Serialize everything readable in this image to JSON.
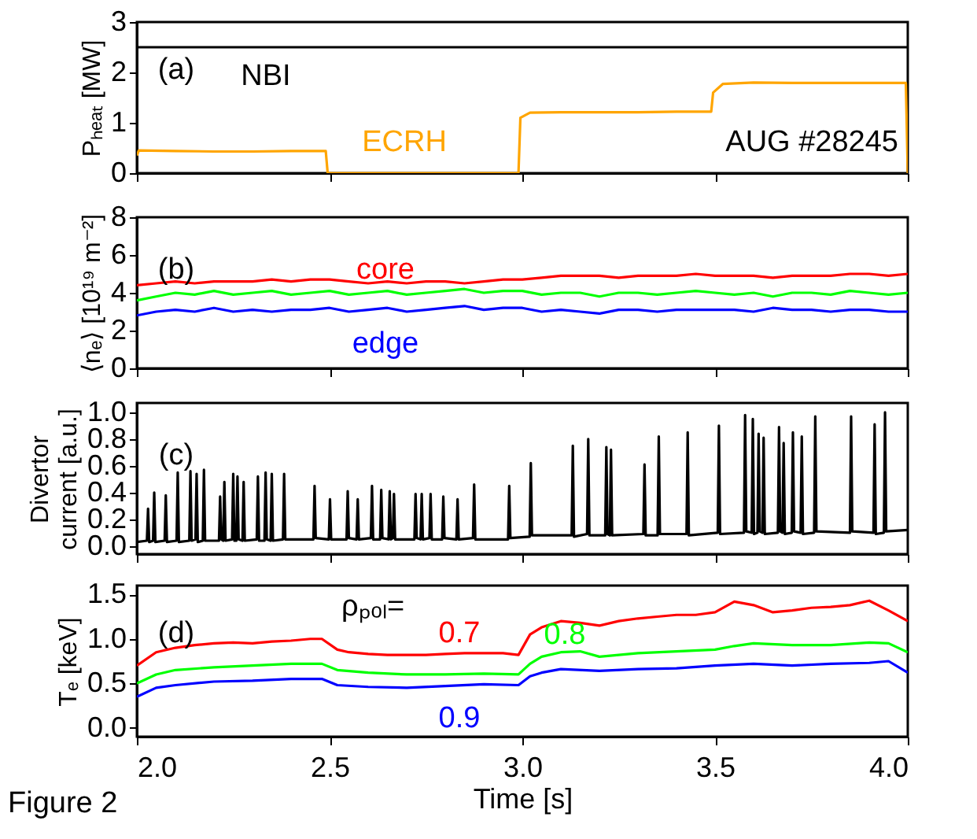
{
  "chart_data": [
    {
      "type": "line",
      "ylabel": "Pₕₑₐₜ [MW]",
      "xlim": [
        2,
        4
      ],
      "xticks": [
        2,
        2.5,
        3,
        3.5,
        4
      ],
      "ylim": [
        0,
        3
      ],
      "yticks": [
        0,
        1,
        2,
        3
      ],
      "tick_labels": "y",
      "annotations": [
        "(a)",
        "AUG #28245"
      ],
      "series": [
        {
          "name": "NBI",
          "color": "#000000",
          "x": [
            2.0,
            4.0
          ],
          "values": [
            2.5,
            2.5
          ]
        },
        {
          "name": "ECRH",
          "color": "#ffa500",
          "x": [
            2.0,
            2.005,
            2.1,
            2.2,
            2.3,
            2.4,
            2.49,
            2.495,
            2.99,
            2.995,
            3.02,
            3.1,
            3.2,
            3.3,
            3.4,
            3.49,
            3.495,
            3.52,
            3.6,
            3.7,
            3.8,
            3.9,
            3.995,
            4.0
          ],
          "values": [
            0.35,
            0.45,
            0.44,
            0.43,
            0.43,
            0.44,
            0.44,
            0,
            0,
            1.1,
            1.2,
            1.21,
            1.21,
            1.21,
            1.22,
            1.22,
            1.6,
            1.77,
            1.8,
            1.79,
            1.79,
            1.79,
            1.79,
            0
          ]
        }
      ]
    },
    {
      "type": "line",
      "ylabel": "⟨nₑ⟩ [10¹⁹ m⁻²]",
      "xlim": [
        2,
        4
      ],
      "xticks": [
        2,
        2.5,
        3,
        3.5,
        4
      ],
      "ylim": [
        0,
        8
      ],
      "yticks": [
        0,
        2,
        4,
        6,
        8
      ],
      "tick_labels": "y",
      "annotations": [
        "(b)"
      ],
      "x": [
        2.0,
        2.05,
        2.1,
        2.15,
        2.2,
        2.25,
        2.3,
        2.35,
        2.4,
        2.45,
        2.5,
        2.55,
        2.6,
        2.65,
        2.7,
        2.75,
        2.8,
        2.85,
        2.9,
        2.95,
        3.0,
        3.05,
        3.1,
        3.15,
        3.2,
        3.25,
        3.3,
        3.35,
        3.4,
        3.45,
        3.5,
        3.55,
        3.6,
        3.65,
        3.7,
        3.75,
        3.8,
        3.85,
        3.9,
        3.95,
        4.0
      ],
      "series": [
        {
          "name": "core",
          "color": "#ff0000",
          "values": [
            4.4,
            4.5,
            4.6,
            4.5,
            4.6,
            4.6,
            4.6,
            4.7,
            4.6,
            4.7,
            4.7,
            4.6,
            4.5,
            4.6,
            4.5,
            4.6,
            4.6,
            4.5,
            4.6,
            4.7,
            4.7,
            4.8,
            4.9,
            4.9,
            4.9,
            4.8,
            4.9,
            4.9,
            4.9,
            5.0,
            4.9,
            4.9,
            4.9,
            4.8,
            4.9,
            4.9,
            4.9,
            5.0,
            5.0,
            4.9,
            5.0
          ]
        },
        {
          "color": "#00ff00",
          "values": [
            3.6,
            3.8,
            4.0,
            3.9,
            4.1,
            3.9,
            4.0,
            4.1,
            3.9,
            4.0,
            4.1,
            3.9,
            4.0,
            4.1,
            3.9,
            4.0,
            4.1,
            4.2,
            4.0,
            4.1,
            4.1,
            3.9,
            4.0,
            4.0,
            3.8,
            4.0,
            4.0,
            3.9,
            4.0,
            4.1,
            4.0,
            3.9,
            4.0,
            3.8,
            4.0,
            4.0,
            3.9,
            4.1,
            4.0,
            3.9,
            4.0
          ]
        },
        {
          "name": "edge",
          "color": "#0000ff",
          "values": [
            2.8,
            3.0,
            3.1,
            3.0,
            3.2,
            3.0,
            3.1,
            3.0,
            3.1,
            3.1,
            3.2,
            3.0,
            3.1,
            3.2,
            3.0,
            3.1,
            3.2,
            3.3,
            3.1,
            3.2,
            3.2,
            3.0,
            3.1,
            3.0,
            2.9,
            3.1,
            3.1,
            3.0,
            3.1,
            3.1,
            3.1,
            3.1,
            3.0,
            3.2,
            3.1,
            3.1,
            3.0,
            3.1,
            3.1,
            3.0,
            3.0
          ]
        }
      ]
    },
    {
      "type": "line",
      "ylabel": "Divertor\ncurrent [a.u.]",
      "xlim": [
        2,
        4
      ],
      "xticks": [
        2,
        2.5,
        3,
        3.5,
        4
      ],
      "ylim": [
        -0.06,
        1.07
      ],
      "yticks": [
        {
          "value": 0,
          "label": "0.0"
        },
        {
          "value": 0.2,
          "label": "0.2"
        },
        {
          "value": 0.4,
          "label": "0.4"
        },
        {
          "value": 0.6,
          "label": "0.6"
        },
        {
          "value": 0.8,
          "label": "0.8"
        },
        {
          "value": 1,
          "label": "1.0"
        }
      ],
      "tick_labels": "y",
      "annotations": [
        "(c)"
      ],
      "series": [
        {
          "color": "#000000",
          "x": [
            2.0,
            2.026,
            2.029,
            2.032,
            2.042,
            2.045,
            2.048,
            2.072,
            2.075,
            2.078,
            2.103,
            2.106,
            2.109,
            2.136,
            2.139,
            2.142,
            2.152,
            2.155,
            2.158,
            2.171,
            2.174,
            2.177,
            2.213,
            2.216,
            2.219,
            2.224,
            2.227,
            2.23,
            2.247,
            2.25,
            2.253,
            2.258,
            2.261,
            2.264,
            2.274,
            2.277,
            2.28,
            2.311,
            2.314,
            2.317,
            2.331,
            2.334,
            2.337,
            2.347,
            2.35,
            2.353,
            2.379,
            2.382,
            2.385,
            2.458,
            2.461,
            2.464,
            2.498,
            2.501,
            2.504,
            2.544,
            2.547,
            2.55,
            2.57,
            2.573,
            2.576,
            2.607,
            2.61,
            2.613,
            2.631,
            2.634,
            2.637,
            2.653,
            2.656,
            2.659,
            2.664,
            2.667,
            2.67,
            2.72,
            2.723,
            2.726,
            2.736,
            2.739,
            2.742,
            2.759,
            2.762,
            2.765,
            2.792,
            2.795,
            2.798,
            2.829,
            2.832,
            2.835,
            2.872,
            2.875,
            2.878,
            2.963,
            2.966,
            2.969,
            3.019,
            3.022,
            3.025,
            3.128,
            3.131,
            3.134,
            3.168,
            3.171,
            3.174,
            3.215,
            3.218,
            3.221,
            3.227,
            3.23,
            3.233,
            3.314,
            3.317,
            3.32,
            3.351,
            3.354,
            3.357,
            3.426,
            3.429,
            3.432,
            3.507,
            3.51,
            3.513,
            3.575,
            3.578,
            3.581,
            3.595,
            3.598,
            3.601,
            3.61,
            3.613,
            3.616,
            3.623,
            3.626,
            3.629,
            3.663,
            3.666,
            3.669,
            3.675,
            3.678,
            3.681,
            3.699,
            3.702,
            3.705,
            3.722,
            3.725,
            3.728,
            3.757,
            3.76,
            3.763,
            3.85,
            3.853,
            3.856,
            3.911,
            3.914,
            3.917,
            3.938,
            3.941,
            3.944,
            4.0
          ],
          "values": [
            0.03,
            0.04,
            0.28,
            0.03,
            0.04,
            0.4,
            0.03,
            0.04,
            0.38,
            0.03,
            0.04,
            0.55,
            0.03,
            0.04,
            0.56,
            0.04,
            0.05,
            0.54,
            0.03,
            0.04,
            0.57,
            0.04,
            0.04,
            0.37,
            0.05,
            0.04,
            0.48,
            0.04,
            0.05,
            0.54,
            0.04,
            0.04,
            0.52,
            0.05,
            0.04,
            0.48,
            0.04,
            0.05,
            0.52,
            0.04,
            0.04,
            0.55,
            0.05,
            0.04,
            0.54,
            0.04,
            0.05,
            0.54,
            0.05,
            0.05,
            0.45,
            0.06,
            0.05,
            0.35,
            0.05,
            0.05,
            0.41,
            0.06,
            0.05,
            0.35,
            0.05,
            0.06,
            0.45,
            0.05,
            0.05,
            0.42,
            0.06,
            0.05,
            0.41,
            0.05,
            0.06,
            0.39,
            0.05,
            0.05,
            0.39,
            0.06,
            0.05,
            0.39,
            0.05,
            0.06,
            0.39,
            0.05,
            0.05,
            0.37,
            0.06,
            0.05,
            0.35,
            0.05,
            0.06,
            0.46,
            0.05,
            0.05,
            0.45,
            0.06,
            0.07,
            0.62,
            0.08,
            0.08,
            0.75,
            0.07,
            0.09,
            0.8,
            0.08,
            0.08,
            0.74,
            0.09,
            0.08,
            0.72,
            0.08,
            0.09,
            0.61,
            0.08,
            0.08,
            0.82,
            0.09,
            0.09,
            0.85,
            0.08,
            0.1,
            0.9,
            0.09,
            0.1,
            0.98,
            0.11,
            0.1,
            0.95,
            0.09,
            0.1,
            0.84,
            0.11,
            0.1,
            0.81,
            0.09,
            0.1,
            0.89,
            0.11,
            0.1,
            0.77,
            0.09,
            0.1,
            0.85,
            0.11,
            0.1,
            0.82,
            0.09,
            0.1,
            0.97,
            0.11,
            0.1,
            0.97,
            0.11,
            0.1,
            0.91,
            0.09,
            0.1,
            1.0,
            0.11,
            0.12
          ]
        }
      ]
    },
    {
      "type": "line",
      "ylabel": "Tₑ [keV]",
      "xlabel": "Time [s]",
      "xlim": [
        2,
        4
      ],
      "xticks": [
        {
          "value": 2,
          "label": "2.0"
        },
        {
          "value": 2.5,
          "label": "2.5"
        },
        {
          "value": 3,
          "label": "3.0"
        },
        {
          "value": 3.5,
          "label": "3.5"
        },
        {
          "value": 4,
          "label": "4.0"
        }
      ],
      "ylim": [
        -0.1,
        1.6
      ],
      "yticks": [
        {
          "value": 0,
          "label": "0.0"
        },
        {
          "value": 0.5,
          "label": "0.5"
        },
        {
          "value": 1,
          "label": "1.0"
        },
        {
          "value": 1.5,
          "label": "1.5"
        }
      ],
      "annotations": [
        "(d)",
        "ρₚₒₗ=",
        "Figure 2"
      ],
      "series": [
        {
          "name": "0.7",
          "color": "#ff0000",
          "x": [
            2.0,
            2.05,
            2.1,
            2.15,
            2.2,
            2.25,
            2.3,
            2.35,
            2.4,
            2.45,
            2.48,
            2.52,
            2.55,
            2.6,
            2.65,
            2.7,
            2.75,
            2.8,
            2.85,
            2.9,
            2.95,
            2.99,
            3.02,
            3.05,
            3.1,
            3.15,
            3.2,
            3.25,
            3.3,
            3.35,
            3.4,
            3.45,
            3.5,
            3.55,
            3.6,
            3.65,
            3.7,
            3.75,
            3.8,
            3.85,
            3.9,
            3.95,
            4.0
          ],
          "values": [
            0.7,
            0.85,
            0.9,
            0.93,
            0.95,
            0.96,
            0.95,
            0.97,
            0.98,
            1.0,
            1.0,
            0.88,
            0.85,
            0.83,
            0.82,
            0.82,
            0.82,
            0.83,
            0.84,
            0.84,
            0.84,
            0.82,
            1.05,
            1.13,
            1.2,
            1.18,
            1.15,
            1.2,
            1.23,
            1.25,
            1.27,
            1.27,
            1.3,
            1.42,
            1.38,
            1.3,
            1.32,
            1.35,
            1.36,
            1.38,
            1.43,
            1.32,
            1.2
          ]
        },
        {
          "name": "0.8",
          "color": "#00ff00",
          "x": [
            2.0,
            2.05,
            2.1,
            2.2,
            2.3,
            2.4,
            2.48,
            2.52,
            2.6,
            2.7,
            2.8,
            2.9,
            2.99,
            3.02,
            3.05,
            3.1,
            3.15,
            3.2,
            3.3,
            3.4,
            3.5,
            3.55,
            3.6,
            3.7,
            3.8,
            3.9,
            3.95,
            4.0
          ],
          "values": [
            0.5,
            0.6,
            0.65,
            0.68,
            0.7,
            0.72,
            0.72,
            0.65,
            0.62,
            0.6,
            0.6,
            0.61,
            0.6,
            0.72,
            0.8,
            0.85,
            0.86,
            0.8,
            0.84,
            0.86,
            0.88,
            0.92,
            0.95,
            0.93,
            0.93,
            0.96,
            0.95,
            0.85
          ]
        },
        {
          "name": "0.9",
          "color": "#0000ff",
          "x": [
            2.0,
            2.05,
            2.1,
            2.2,
            2.3,
            2.4,
            2.48,
            2.52,
            2.6,
            2.7,
            2.8,
            2.9,
            2.99,
            3.02,
            3.05,
            3.1,
            3.2,
            3.3,
            3.4,
            3.5,
            3.6,
            3.7,
            3.8,
            3.9,
            3.95,
            4.0
          ],
          "values": [
            0.35,
            0.45,
            0.48,
            0.52,
            0.53,
            0.55,
            0.55,
            0.48,
            0.46,
            0.45,
            0.47,
            0.49,
            0.48,
            0.58,
            0.62,
            0.66,
            0.64,
            0.66,
            0.67,
            0.7,
            0.72,
            0.7,
            0.72,
            0.73,
            0.75,
            0.62
          ]
        }
      ]
    }
  ]
}
